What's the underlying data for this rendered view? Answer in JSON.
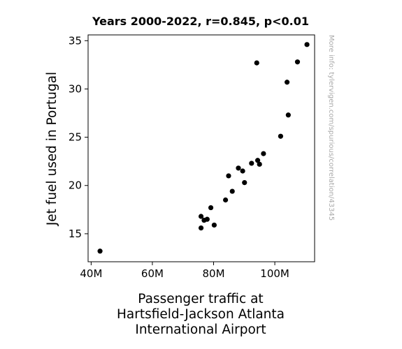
{
  "chart_data": {
    "type": "scatter",
    "title": "Years 2000-2022, r=0.845, p<0.01",
    "xlabel_lines": [
      "Passenger traffic at",
      "Hartsfield-Jackson Atlanta",
      "International Airport"
    ],
    "ylabel": "Jet fuel used in Portugal",
    "watermark": "More info: tylervigen.com/spurious/correlation/43345",
    "xlim": [
      39,
      113
    ],
    "ylim": [
      12.1,
      35.6
    ],
    "x_ticks": [
      40,
      60,
      80,
      100
    ],
    "x_tick_labels": [
      "40M",
      "60M",
      "80M",
      "100M"
    ],
    "y_ticks": [
      15,
      20,
      25,
      30,
      35
    ],
    "y_tick_labels": [
      "15",
      "20",
      "25",
      "30",
      "35"
    ],
    "grid": false,
    "marker_color": "#000000",
    "points": [
      {
        "x": 42.9,
        "y": 13.2
      },
      {
        "x": 75.9,
        "y": 15.6
      },
      {
        "x": 75.9,
        "y": 16.8
      },
      {
        "x": 76.9,
        "y": 16.4
      },
      {
        "x": 77.9,
        "y": 16.5
      },
      {
        "x": 79.1,
        "y": 17.7
      },
      {
        "x": 80.2,
        "y": 15.9
      },
      {
        "x": 83.9,
        "y": 18.5
      },
      {
        "x": 84.9,
        "y": 21.0
      },
      {
        "x": 86.1,
        "y": 19.4
      },
      {
        "x": 88.1,
        "y": 21.8
      },
      {
        "x": 89.5,
        "y": 21.5
      },
      {
        "x": 90.1,
        "y": 20.3
      },
      {
        "x": 92.4,
        "y": 22.3
      },
      {
        "x": 94.1,
        "y": 32.7
      },
      {
        "x": 94.4,
        "y": 22.6
      },
      {
        "x": 95.0,
        "y": 22.2
      },
      {
        "x": 96.3,
        "y": 23.3
      },
      {
        "x": 101.9,
        "y": 25.1
      },
      {
        "x": 104.0,
        "y": 30.7
      },
      {
        "x": 104.4,
        "y": 27.3
      },
      {
        "x": 107.4,
        "y": 32.8
      },
      {
        "x": 110.5,
        "y": 34.6
      }
    ]
  }
}
